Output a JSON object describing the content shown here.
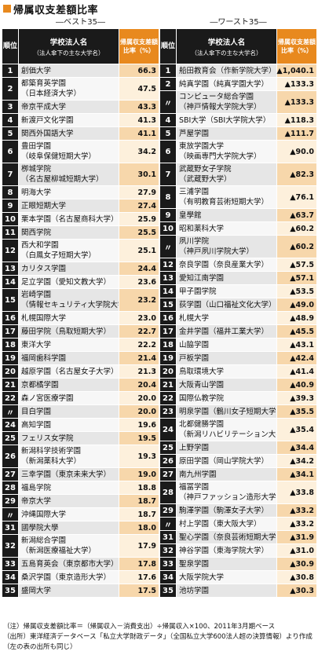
{
  "title": "帰属収支差額比率",
  "left": {
    "label": "―ベスト35―",
    "header": {
      "rank": "順位",
      "name1": "学校法人名",
      "name2": "（法人傘下の主な大学名）",
      "value": "帰属収支差額比率（%）"
    },
    "rows": [
      {
        "rank": "1",
        "name": "創価大学",
        "value": "66.3"
      },
      {
        "rank": "2",
        "name": "都築育英学園",
        "name2": "（日本経済大学）",
        "value": "47.5"
      },
      {
        "rank": "3",
        "name": "帝京平成大学",
        "value": "43.3"
      },
      {
        "rank": "4",
        "name": "新渡戸文化学園",
        "value": "41.3"
      },
      {
        "rank": "5",
        "name": "関西外国語大学",
        "value": "41.1"
      },
      {
        "rank": "6",
        "name": "豊田学園",
        "name2": "（岐阜保健短期大学）",
        "value": "34.2"
      },
      {
        "rank": "7",
        "name": "栁城学院",
        "name2": "（名古屋柳城短期大学）",
        "value": "30.1"
      },
      {
        "rank": "8",
        "name": "明海大学",
        "value": "27.9"
      },
      {
        "rank": "9",
        "name": "正眼短期大学",
        "value": "27.4"
      },
      {
        "rank": "10",
        "name": "栗本学園（名古屋商科大学）",
        "value": "25.9"
      },
      {
        "rank": "11",
        "name": "関西学院",
        "value": "25.5"
      },
      {
        "rank": "12",
        "name": "西大和学園",
        "name2": "（白鳳女子短期大学）",
        "value": "25.1"
      },
      {
        "rank": "13",
        "name": "カリタス学園",
        "value": "24.4"
      },
      {
        "rank": "14",
        "name": "足立学園（愛知文教大学）",
        "value": "23.6"
      },
      {
        "rank": "15",
        "name": "岩崎学園",
        "name2": "（情報セキュリティ大学院大学）",
        "value": "23.2"
      },
      {
        "rank": "16",
        "name": "札幌国際大学",
        "value": "23.0"
      },
      {
        "rank": "17",
        "name": "藤田学院（鳥取短期大学）",
        "value": "22.7"
      },
      {
        "rank": "18",
        "name": "東洋大学",
        "value": "22.2"
      },
      {
        "rank": "19",
        "name": "福岡歯科学園",
        "value": "21.4"
      },
      {
        "rank": "20",
        "name": "越原学園（名古屋女子大学）",
        "value": "21.3"
      },
      {
        "rank": "21",
        "name": "京都橘学園",
        "value": "20.4"
      },
      {
        "rank": "22",
        "name": "森ノ宮医療学園",
        "value": "20.0"
      },
      {
        "rank": "〃",
        "name": "目白学園",
        "value": "20.0"
      },
      {
        "rank": "24",
        "name": "高知学園",
        "value": "19.6"
      },
      {
        "rank": "25",
        "name": "フェリス女学院",
        "value": "19.5"
      },
      {
        "rank": "26",
        "name": "新潟科学技術学園",
        "name2": "（新潟薬科大学）",
        "value": "19.3"
      },
      {
        "rank": "27",
        "name": "三幸学園（東京未来大学）",
        "value": "19.0"
      },
      {
        "rank": "28",
        "name": "福島学院",
        "value": "18.8"
      },
      {
        "rank": "29",
        "name": "帝京大学",
        "value": "18.7"
      },
      {
        "rank": "〃",
        "name": "沖縄国際大学",
        "value": "18.7"
      },
      {
        "rank": "31",
        "name": "國學院大學",
        "value": "18.0"
      },
      {
        "rank": "32",
        "name": "新潟総合学園",
        "name2": "（新潟医療福祉大学）",
        "value": "17.9"
      },
      {
        "rank": "33",
        "name": "五島育英会（東京都市大学）",
        "value": "17.8"
      },
      {
        "rank": "34",
        "name": "桑沢学園（東京造形大学）",
        "value": "17.6"
      },
      {
        "rank": "35",
        "name": "盛岡大学",
        "value": "17.5"
      }
    ]
  },
  "right": {
    "label": "―ワースト35―",
    "header": {
      "rank": "順位",
      "name1": "学校法人名",
      "name2": "（法人傘下の主な大学名）",
      "value": "帰属収支差額比率（%）"
    },
    "rows": [
      {
        "rank": "1",
        "name": "船田教育会（作新学院大学）",
        "value": "▲1,040.1"
      },
      {
        "rank": "2",
        "name": "純真学園（純真学園大学）",
        "value": "▲133.3"
      },
      {
        "rank": "〃",
        "name": "コンピュータ総合学園",
        "name2": "（神戸情報大学院大学）",
        "value": "▲133.3"
      },
      {
        "rank": "4",
        "name": "SBI大学（SBI大学院大学）",
        "value": "▲118.3"
      },
      {
        "rank": "5",
        "name": "芦屋学園",
        "value": "▲111.7"
      },
      {
        "rank": "6",
        "name": "東放学園大学",
        "name2": "（映画専門大学院大学）",
        "value": "▲90.0"
      },
      {
        "rank": "7",
        "name": "武蔵野女子学院",
        "name2": "（武蔵野大学）",
        "value": "▲82.3"
      },
      {
        "rank": "8",
        "name": "三浦学園",
        "name2": "（有明教育芸術短期大学）",
        "value": "▲76.1"
      },
      {
        "rank": "9",
        "name": "皇學館",
        "value": "▲63.7"
      },
      {
        "rank": "10",
        "name": "昭和薬科大学",
        "value": "▲60.2"
      },
      {
        "rank": "〃",
        "name": "夙川学院",
        "name2": "（神戸夙川学院大学）",
        "value": "▲60.2"
      },
      {
        "rank": "12",
        "name": "奈良学園（奈良産業大学）",
        "value": "▲57.5"
      },
      {
        "rank": "13",
        "name": "愛知江南学園",
        "value": "▲57.1"
      },
      {
        "rank": "14",
        "name": "甲子園学院",
        "value": "▲53.5"
      },
      {
        "rank": "15",
        "name": "荻学園（山口福祉文化大学）",
        "value": "▲49.0"
      },
      {
        "rank": "16",
        "name": "札幌大学",
        "value": "▲48.9"
      },
      {
        "rank": "17",
        "name": "金井学園（福井工業大学）",
        "value": "▲45.5"
      },
      {
        "rank": "18",
        "name": "山脇学園",
        "value": "▲43.1"
      },
      {
        "rank": "19",
        "name": "戸板学園",
        "value": "▲42.4"
      },
      {
        "rank": "20",
        "name": "鳥取環境大学",
        "value": "▲41.4"
      },
      {
        "rank": "21",
        "name": "大阪青山学園",
        "value": "▲40.9"
      },
      {
        "rank": "22",
        "name": "国際仏教学院",
        "value": "▲39.3"
      },
      {
        "rank": "23",
        "name": "明泉学園（鶴川女子短期大学）",
        "value": "▲35.5"
      },
      {
        "rank": "24",
        "name": "北都健勝学園",
        "name2": "（新潟リハビリテーション大学）",
        "value": "▲35.4"
      },
      {
        "rank": "25",
        "name": "上野学園",
        "value": "▲34.4"
      },
      {
        "rank": "26",
        "name": "原田学園（岡山学院大学）",
        "value": "▲34.2"
      },
      {
        "rank": "27",
        "name": "南九州学園",
        "value": "▲34.1"
      },
      {
        "rank": "28",
        "name": "福冨学園",
        "name2": "（神戸ファッション造形大学）",
        "value": "▲33.8"
      },
      {
        "rank": "29",
        "name": "駒澤学園（駒澤女子大学）",
        "value": "▲33.2"
      },
      {
        "rank": "〃",
        "name": "村上学園（東大阪大学）",
        "value": "▲33.2"
      },
      {
        "rank": "31",
        "name": "聖心学園（奈良芸術短期大学）",
        "value": "▲31.9"
      },
      {
        "rank": "32",
        "name": "神谷学園（東海学院大学）",
        "value": "▲31.0"
      },
      {
        "rank": "33",
        "name": "聖泉学園",
        "value": "▲30.9"
      },
      {
        "rank": "34",
        "name": "大阪学院大学",
        "value": "▲30.8"
      },
      {
        "rank": "35",
        "name": "池坊学園",
        "value": "▲30.3"
      }
    ]
  },
  "notes": [
    "（注）帰属収支差額比率＝（帰属収入－消費支出）÷帰属収入×100、2011年3月期ベース",
    "（出所）東洋経済データベース「私立大学財政データ」（全国私立大学600法人超の決算情報）より作成（左の表の出所も同じ）"
  ]
}
